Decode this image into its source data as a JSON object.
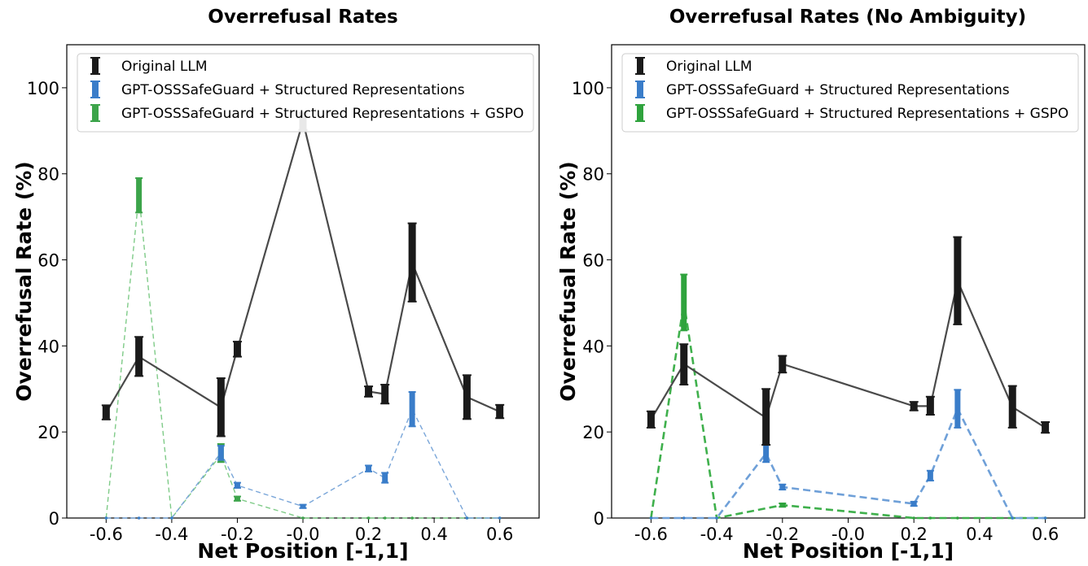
{
  "chart_data": [
    {
      "type": "line",
      "title": "Overrefusal Rates",
      "xlabel": "Net Position [-1,1]",
      "ylabel": "Overrefusal Rate (%)",
      "xlim": [
        -0.72,
        0.72
      ],
      "ylim": [
        0,
        110
      ],
      "xticks": [
        "-0.6",
        "-0.4",
        "-0.2",
        "-0.0",
        "0.2",
        "0.4",
        "0.6"
      ],
      "yticks": [
        "0",
        "20",
        "40",
        "60",
        "80",
        "100"
      ],
      "grid": false,
      "legend_position": "top",
      "x": [
        -0.6,
        -0.5,
        -0.4,
        -0.25,
        -0.2,
        0.0,
        0.2,
        0.25,
        0.333,
        0.5,
        0.6
      ],
      "series": [
        {
          "name": "Original LLM",
          "color": "#1a1a1a",
          "line_color": "#4a4a4a",
          "style": "solid",
          "values": [
            24.5,
            37.5,
            null,
            25.7,
            39.2,
            92.2,
            29.4,
            28.8,
            59.3,
            28.1,
            24.7
          ],
          "err_low": [
            22.9,
            33.0,
            null,
            19.0,
            37.5,
            90.2,
            28.2,
            26.6,
            50.3,
            23.0,
            23.2
          ],
          "err_high": [
            26.2,
            42.1,
            null,
            32.5,
            41.0,
            94.2,
            30.6,
            31.0,
            68.5,
            33.2,
            26.3
          ]
        },
        {
          "name": "GPT-OSSSafeGuard + Structured Representations",
          "color": "#3a7dc9",
          "line_color": "#7aa6d9",
          "style": "dashed",
          "values": [
            0,
            0,
            0,
            15.2,
            7.6,
            2.7,
            11.5,
            9.3,
            25.3,
            0,
            0
          ],
          "err_low": [
            0,
            0,
            0,
            13.5,
            7.0,
            2.3,
            10.8,
            8.2,
            21.3,
            0,
            0
          ],
          "err_high": [
            0,
            0,
            0,
            16.8,
            8.2,
            3.1,
            12.2,
            10.5,
            29.3,
            0,
            0
          ]
        },
        {
          "name": "GPT-OSSSafeGuard + Structured Representations + GSPO",
          "color": "#3ca44a",
          "line_color": "#7fcb88",
          "style": "dashed",
          "values": [
            0,
            75.0,
            0,
            14.7,
            4.5,
            0,
            0,
            0,
            0,
            0,
            0
          ],
          "err_low": [
            0,
            71.0,
            0,
            13.0,
            4.0,
            0,
            0,
            0,
            0,
            0,
            0
          ],
          "err_high": [
            0,
            79.0,
            0,
            17.2,
            5.0,
            0,
            0,
            0,
            0,
            0,
            0
          ]
        }
      ]
    },
    {
      "type": "line",
      "title": "Overrefusal Rates (No Ambiguity)",
      "xlabel": "Net Position [-1,1]",
      "ylabel": "Overrefusal Rate (%)",
      "xlim": [
        -0.72,
        0.72
      ],
      "ylim": [
        0,
        110
      ],
      "xticks": [
        "-0.6",
        "-0.4",
        "-0.2",
        "-0.0",
        "0.2",
        "0.4",
        "0.6"
      ],
      "yticks": [
        "0",
        "20",
        "40",
        "60",
        "80",
        "100"
      ],
      "grid": false,
      "legend_position": "top",
      "x": [
        -0.6,
        -0.5,
        -0.4,
        -0.25,
        -0.2,
        0.0,
        0.2,
        0.25,
        0.333,
        0.5,
        0.6
      ],
      "series": [
        {
          "name": "Original LLM",
          "color": "#1a1a1a",
          "line_color": "#4a4a4a",
          "style": "solid",
          "values": [
            22.9,
            35.8,
            null,
            23.3,
            35.8,
            null,
            26.0,
            26.0,
            55.1,
            25.8,
            21.0
          ],
          "err_low": [
            21.0,
            31.0,
            null,
            17.0,
            33.8,
            null,
            25.0,
            24.0,
            45.0,
            21.0,
            19.8
          ],
          "err_high": [
            24.8,
            40.4,
            null,
            30.0,
            37.7,
            null,
            27.0,
            28.2,
            65.3,
            30.7,
            22.3
          ]
        },
        {
          "name": "GPT-OSSSafeGuard + Structured Representations",
          "color": "#3a7dc9",
          "line_color": "#6fa0d8",
          "style": "dashed",
          "values": [
            0,
            0,
            0,
            15.0,
            7.2,
            null,
            3.3,
            9.9,
            25.4,
            0,
            0
          ],
          "err_low": [
            0,
            0,
            0,
            13.0,
            6.6,
            null,
            2.8,
            8.7,
            21.0,
            0,
            0
          ],
          "err_high": [
            0,
            0,
            0,
            17.2,
            7.8,
            null,
            3.8,
            11.0,
            29.8,
            0,
            0
          ]
        },
        {
          "name": "GPT-OSSSafeGuard + Structured Representations + GSPO",
          "color": "#2fa33d",
          "line_color": "#3fb04c",
          "style": "dashed",
          "values": [
            0,
            50.1,
            0,
            null,
            3.0,
            null,
            0,
            0,
            0,
            0,
            0
          ],
          "err_low": [
            0,
            43.6,
            0,
            null,
            2.6,
            null,
            0,
            0,
            0,
            0,
            0
          ],
          "err_high": [
            0,
            56.6,
            0,
            null,
            3.4,
            null,
            0,
            0,
            0,
            0,
            0
          ]
        }
      ]
    }
  ]
}
